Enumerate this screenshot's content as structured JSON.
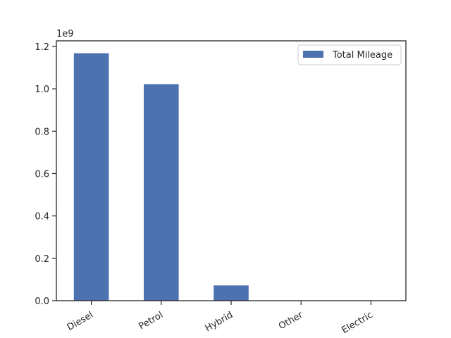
{
  "chart_data": {
    "type": "bar",
    "categories": [
      "Diesel",
      "Petrol",
      "Hybrid",
      "Other",
      "Electric"
    ],
    "series": [
      {
        "name": "Total Mileage",
        "values": [
          1168000000,
          1022000000,
          72000000,
          0,
          0
        ],
        "color": "#4c72b0"
      }
    ],
    "title": "",
    "xlabel": "",
    "ylabel": "",
    "ylim": [
      0,
      1226400000
    ],
    "yticks": [
      0,
      200000000,
      400000000,
      600000000,
      800000000,
      1000000000,
      1200000000
    ],
    "ytick_labels": [
      "0.0",
      "0.2",
      "0.4",
      "0.6",
      "0.8",
      "1.0",
      "1.2"
    ],
    "offset_text": "1e9",
    "legend_position": "top-right",
    "grid": false,
    "x_tick_rotation": 30
  }
}
